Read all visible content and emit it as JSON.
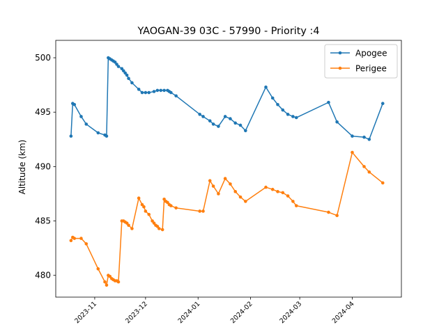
{
  "chart_data": {
    "type": "line",
    "title": "YAOGAN-39 03C - 57990 - Priority :4",
    "xlabel": "",
    "ylabel": "Altitude (km)",
    "ylim": [
      478,
      501.6
    ],
    "yticks": [
      480,
      485,
      490,
      495,
      500
    ],
    "xlim": [
      "2023-10-09",
      "2024-04-30"
    ],
    "xticks": [
      "2023-11-01",
      "2023-12-01",
      "2024-01-01",
      "2024-02-01",
      "2024-03-01",
      "2024-04-01"
    ],
    "xtick_labels": [
      "2023-11",
      "2023-12",
      "2024-01",
      "2024-02",
      "2024-03",
      "2024-04"
    ],
    "grid": false,
    "legend_position": "top-right",
    "series": [
      {
        "name": "Apogee",
        "color": "#1f77b4",
        "points": [
          [
            "2023-10-18",
            492.8
          ],
          [
            "2023-10-19",
            495.8
          ],
          [
            "2023-10-20",
            495.7
          ],
          [
            "2023-10-24",
            494.6
          ],
          [
            "2023-10-27",
            493.9
          ],
          [
            "2023-11-03",
            493.1
          ],
          [
            "2023-11-07",
            492.9
          ],
          [
            "2023-11-08",
            492.8
          ],
          [
            "2023-11-09",
            500.0
          ],
          [
            "2023-11-10",
            499.9
          ],
          [
            "2023-11-11",
            499.8
          ],
          [
            "2023-11-12",
            499.7
          ],
          [
            "2023-11-13",
            499.6
          ],
          [
            "2023-11-14",
            499.4
          ],
          [
            "2023-11-15",
            499.2
          ],
          [
            "2023-11-17",
            499.0
          ],
          [
            "2023-11-18",
            498.8
          ],
          [
            "2023-11-19",
            498.6
          ],
          [
            "2023-11-20",
            498.4
          ],
          [
            "2023-11-21",
            498.1
          ],
          [
            "2023-11-23",
            497.7
          ],
          [
            "2023-11-27",
            497.1
          ],
          [
            "2023-11-29",
            496.8
          ],
          [
            "2023-12-01",
            496.8
          ],
          [
            "2023-12-03",
            496.8
          ],
          [
            "2023-12-06",
            496.9
          ],
          [
            "2023-12-08",
            497.0
          ],
          [
            "2023-12-10",
            497.0
          ],
          [
            "2023-12-12",
            497.0
          ],
          [
            "2023-12-14",
            497.0
          ],
          [
            "2023-12-15",
            496.9
          ],
          [
            "2023-12-16",
            496.8
          ],
          [
            "2023-12-19",
            496.5
          ],
          [
            "2024-01-02",
            494.8
          ],
          [
            "2024-01-04",
            494.6
          ],
          [
            "2024-01-08",
            494.2
          ],
          [
            "2024-01-10",
            493.9
          ],
          [
            "2024-01-13",
            493.7
          ],
          [
            "2024-01-17",
            494.6
          ],
          [
            "2024-01-20",
            494.4
          ],
          [
            "2024-01-23",
            494.0
          ],
          [
            "2024-01-26",
            493.8
          ],
          [
            "2024-01-29",
            493.3
          ],
          [
            "2024-02-10",
            497.3
          ],
          [
            "2024-02-14",
            496.3
          ],
          [
            "2024-02-17",
            495.7
          ],
          [
            "2024-02-20",
            495.2
          ],
          [
            "2024-02-23",
            494.8
          ],
          [
            "2024-02-26",
            494.6
          ],
          [
            "2024-02-28",
            494.5
          ],
          [
            "2024-03-18",
            495.9
          ],
          [
            "2024-03-23",
            494.1
          ],
          [
            "2024-04-01",
            492.8
          ],
          [
            "2024-04-08",
            492.7
          ],
          [
            "2024-04-11",
            492.5
          ],
          [
            "2024-04-19",
            495.8
          ]
        ]
      },
      {
        "name": "Perigee",
        "color": "#ff7f0e",
        "points": [
          [
            "2023-10-18",
            483.2
          ],
          [
            "2023-10-19",
            483.5
          ],
          [
            "2023-10-20",
            483.4
          ],
          [
            "2023-10-24",
            483.4
          ],
          [
            "2023-10-27",
            482.9
          ],
          [
            "2023-11-03",
            480.6
          ],
          [
            "2023-11-07",
            479.4
          ],
          [
            "2023-11-08",
            479.1
          ],
          [
            "2023-11-09",
            480.0
          ],
          [
            "2023-11-10",
            479.9
          ],
          [
            "2023-11-11",
            479.7
          ],
          [
            "2023-11-12",
            479.6
          ],
          [
            "2023-11-13",
            479.5
          ],
          [
            "2023-11-14",
            479.5
          ],
          [
            "2023-11-15",
            479.4
          ],
          [
            "2023-11-17",
            485.0
          ],
          [
            "2023-11-18",
            485.0
          ],
          [
            "2023-11-19",
            484.9
          ],
          [
            "2023-11-20",
            484.8
          ],
          [
            "2023-11-21",
            484.6
          ],
          [
            "2023-11-23",
            484.3
          ],
          [
            "2023-11-27",
            487.1
          ],
          [
            "2023-11-29",
            486.5
          ],
          [
            "2023-11-30",
            486.3
          ],
          [
            "2023-12-01",
            485.9
          ],
          [
            "2023-12-03",
            485.6
          ],
          [
            "2023-12-05",
            485.0
          ],
          [
            "2023-12-06",
            484.8
          ],
          [
            "2023-12-07",
            484.6
          ],
          [
            "2023-12-08",
            484.5
          ],
          [
            "2023-12-09",
            484.3
          ],
          [
            "2023-12-11",
            484.2
          ],
          [
            "2023-12-12",
            487.0
          ],
          [
            "2023-12-13",
            486.8
          ],
          [
            "2023-12-14",
            486.7
          ],
          [
            "2023-12-15",
            486.5
          ],
          [
            "2023-12-16",
            486.4
          ],
          [
            "2023-12-19",
            486.2
          ],
          [
            "2024-01-02",
            485.9
          ],
          [
            "2024-01-04",
            485.9
          ],
          [
            "2024-01-08",
            488.7
          ],
          [
            "2024-01-10",
            488.2
          ],
          [
            "2024-01-13",
            487.5
          ],
          [
            "2024-01-17",
            488.9
          ],
          [
            "2024-01-20",
            488.4
          ],
          [
            "2024-01-23",
            487.7
          ],
          [
            "2024-01-26",
            487.2
          ],
          [
            "2024-01-29",
            486.8
          ],
          [
            "2024-02-10",
            488.1
          ],
          [
            "2024-02-14",
            487.9
          ],
          [
            "2024-02-17",
            487.7
          ],
          [
            "2024-02-20",
            487.6
          ],
          [
            "2024-02-23",
            487.3
          ],
          [
            "2024-02-26",
            486.8
          ],
          [
            "2024-02-28",
            486.4
          ],
          [
            "2024-03-18",
            485.8
          ],
          [
            "2024-03-23",
            485.5
          ],
          [
            "2024-04-01",
            491.3
          ],
          [
            "2024-04-08",
            490.0
          ],
          [
            "2024-04-11",
            489.5
          ],
          [
            "2024-04-19",
            488.5
          ]
        ]
      }
    ]
  }
}
